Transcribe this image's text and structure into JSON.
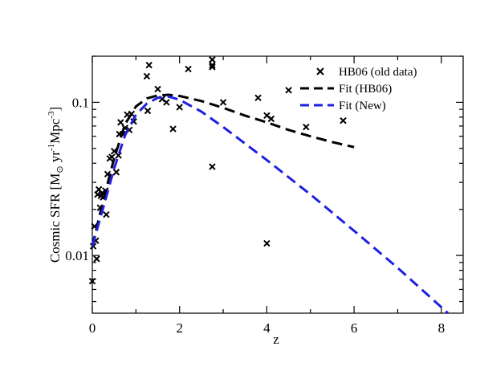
{
  "chart_data": {
    "type": "scatter",
    "title": "",
    "xlabel": "z",
    "ylabel_parts": {
      "main": "Cosmic SFR [M",
      "sun_sub": "⊙",
      "mid": " yr",
      "yr_exp": "-1",
      "mpc": "Mpc",
      "mpc_exp": "-3",
      "end": "]"
    },
    "xlim": [
      0,
      8.5
    ],
    "ylim": [
      0.0042,
      0.2
    ],
    "yscale": "log",
    "x_ticks": [
      0,
      2,
      4,
      6,
      8
    ],
    "x_tick_labels": [
      "0",
      "2",
      "4",
      "6",
      "8"
    ],
    "y_ticks": [
      0.01,
      0.1
    ],
    "y_tick_labels": [
      "0.01",
      "0.1"
    ],
    "legend_position": "top-right",
    "series": [
      {
        "name": "HB06 (old data)",
        "kind": "points",
        "marker": "x",
        "color": "#000000",
        "x": [
          0.0,
          0.02,
          0.05,
          0.08,
          0.1,
          0.12,
          0.15,
          0.18,
          0.2,
          0.22,
          0.25,
          0.3,
          0.32,
          0.35,
          0.4,
          0.45,
          0.5,
          0.55,
          0.6,
          0.62,
          0.65,
          0.7,
          0.75,
          0.8,
          0.85,
          0.9,
          0.95,
          1.25,
          1.27,
          1.3,
          1.5,
          1.6,
          1.7,
          1.85,
          2.0,
          2.2,
          2.75,
          2.75,
          2.75,
          2.75,
          3.0,
          3.8,
          4.0,
          4.0,
          4.1,
          4.5,
          4.9,
          5.75
        ],
        "y": [
          0.0068,
          0.0115,
          0.0155,
          0.0125,
          0.0095,
          0.025,
          0.027,
          0.0205,
          0.0245,
          0.0255,
          0.024,
          0.0265,
          0.0185,
          0.034,
          0.043,
          0.044,
          0.048,
          0.035,
          0.045,
          0.062,
          0.074,
          0.062,
          0.068,
          0.083,
          0.066,
          0.084,
          0.075,
          0.148,
          0.088,
          0.175,
          0.122,
          0.105,
          0.1,
          0.067,
          0.093,
          0.165,
          0.19,
          0.175,
          0.17,
          0.038,
          0.1,
          0.107,
          0.012,
          0.082,
          0.078,
          0.12,
          0.069,
          0.076
        ]
      },
      {
        "name": "Fit (HB06)",
        "kind": "line",
        "dash": "dashed",
        "color": "#000000",
        "x": [
          0.0,
          0.25,
          0.5,
          0.75,
          1.0,
          1.25,
          1.5,
          1.75,
          2.0,
          2.5,
          3.0,
          3.5,
          4.0,
          4.5,
          5.0,
          5.5,
          6.0
        ],
        "y": [
          0.0115,
          0.023,
          0.043,
          0.072,
          0.094,
          0.106,
          0.111,
          0.112,
          0.11,
          0.102,
          0.092,
          0.082,
          0.074,
          0.066,
          0.06,
          0.055,
          0.051
        ]
      },
      {
        "name": "Fit (New)",
        "kind": "line",
        "dash": "dashed",
        "color": "#1f1fe0",
        "x": [
          0.0,
          0.25,
          0.5,
          0.75,
          1.0,
          1.25,
          1.5,
          1.75,
          2.0,
          2.5,
          3.0,
          4.0,
          5.0,
          6.0,
          7.0,
          8.0,
          8.15
        ],
        "y": [
          0.0115,
          0.0205,
          0.037,
          0.061,
          0.083,
          0.098,
          0.107,
          0.109,
          0.104,
          0.087,
          0.069,
          0.042,
          0.025,
          0.0145,
          0.0083,
          0.0046,
          0.0042
        ]
      }
    ]
  }
}
